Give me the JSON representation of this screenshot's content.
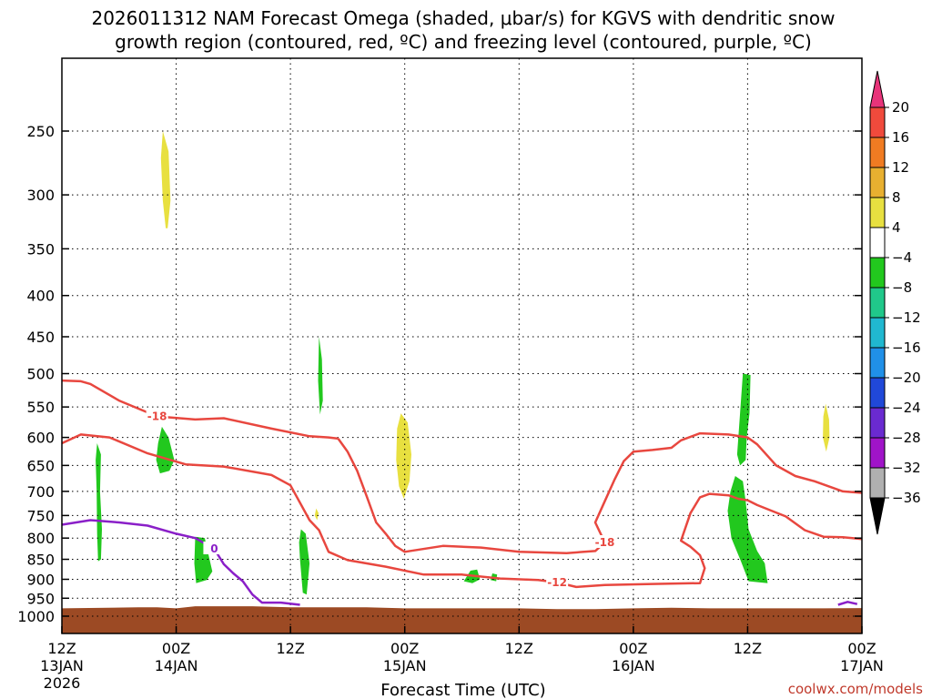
{
  "chart_data": {
    "type": "time-height cross section",
    "title_line1": "2026011312 NAM Forecast Omega (shaded, μbar/s) for KGVS with dendritic snow",
    "title_line2": "growth region (contoured, red, ºC) and freezing level (contoured, purple, ºC)",
    "xlabel": "Forecast Time (UTC)",
    "credit": "coolwx.com/models",
    "x_ticks": [
      {
        "hour": 0,
        "l1": "12Z",
        "l2": "13JAN",
        "l3": "2026"
      },
      {
        "hour": 12,
        "l1": "00Z",
        "l2": "14JAN",
        "l3": ""
      },
      {
        "hour": 24,
        "l1": "12Z",
        "l2": "",
        "l3": ""
      },
      {
        "hour": 36,
        "l1": "00Z",
        "l2": "15JAN",
        "l3": ""
      },
      {
        "hour": 48,
        "l1": "12Z",
        "l2": "",
        "l3": ""
      },
      {
        "hour": 60,
        "l1": "00Z",
        "l2": "16JAN",
        "l3": ""
      },
      {
        "hour": 72,
        "l1": "12Z",
        "l2": "",
        "l3": ""
      },
      {
        "hour": 84,
        "l1": "00Z",
        "l2": "17JAN",
        "l3": ""
      }
    ],
    "xlim_hours": [
      0,
      84
    ],
    "y_ticks_mb": [
      250,
      300,
      350,
      400,
      450,
      500,
      550,
      600,
      650,
      700,
      750,
      800,
      850,
      900,
      950,
      1000
    ],
    "ylim_mb": [
      200,
      1035
    ],
    "y_scale": "log",
    "grid": true,
    "colorbar": {
      "tick_labels": [
        "20",
        "16",
        "12",
        "8",
        "4",
        "−4",
        "−8",
        "−12",
        "−16",
        "−20",
        "−24",
        "−28",
        "−32",
        "−36"
      ],
      "colors": [
        "#e8347a",
        "#f04a3c",
        "#f07b22",
        "#e8b030",
        "#e8e040",
        "#ffffff",
        "#22c81e",
        "#20c88a",
        "#20b8d0",
        "#2090e8",
        "#2048d8",
        "#6a2ad0",
        "#a014c8",
        "#b0b0b0",
        "#000000"
      ]
    },
    "dgz_contours": [
      {
        "label": "-18",
        "points": [
          [
            0,
            510
          ],
          [
            2,
            511
          ],
          [
            3,
            515
          ],
          [
            6,
            540
          ],
          [
            10,
            565
          ],
          [
            14,
            570
          ],
          [
            17,
            568
          ],
          [
            22,
            585
          ],
          [
            26,
            598
          ],
          [
            28,
            600
          ],
          [
            29,
            602
          ]
        ]
      },
      {
        "label": "-12",
        "points": [
          [
            0,
            610
          ],
          [
            2,
            595
          ],
          [
            5,
            600
          ],
          [
            9,
            628
          ],
          [
            13,
            648
          ],
          [
            17,
            652
          ],
          [
            22,
            668
          ],
          [
            24,
            688
          ],
          [
            26,
            760
          ],
          [
            27,
            782
          ],
          [
            28,
            832
          ],
          [
            30,
            852
          ],
          [
            34,
            868
          ],
          [
            38,
            888
          ],
          [
            42,
            888
          ],
          [
            46,
            898
          ],
          [
            50,
            902
          ],
          [
            52,
            908
          ],
          [
            54,
            920
          ],
          [
            57,
            915
          ],
          [
            62,
            912
          ],
          [
            67,
            910
          ],
          [
            67.5,
            872
          ],
          [
            67,
            840
          ],
          [
            66,
            820
          ],
          [
            65,
            806
          ],
          [
            66,
            745
          ],
          [
            67,
            712
          ],
          [
            68,
            705
          ],
          [
            70,
            708
          ],
          [
            71,
            715
          ],
          [
            72,
            718
          ],
          [
            73,
            728
          ],
          [
            76,
            752
          ],
          [
            78,
            782
          ],
          [
            80,
            797
          ],
          [
            82,
            798
          ],
          [
            84,
            802
          ]
        ]
      },
      {
        "label": "-18",
        "points": [
          [
            29,
            602
          ],
          [
            30,
            625
          ],
          [
            31,
            660
          ],
          [
            32,
            710
          ],
          [
            33,
            765
          ],
          [
            34,
            790
          ],
          [
            35,
            818
          ],
          [
            36,
            832
          ],
          [
            40,
            818
          ],
          [
            44,
            822
          ],
          [
            48,
            832
          ],
          [
            53,
            835
          ],
          [
            56,
            830
          ],
          [
            57,
            810
          ],
          [
            56,
            765
          ],
          [
            57,
            720
          ],
          [
            58,
            678
          ],
          [
            59,
            642
          ],
          [
            60,
            625
          ],
          [
            62,
            622
          ],
          [
            64,
            618
          ],
          [
            65,
            605
          ],
          [
            67,
            593
          ],
          [
            70,
            595
          ],
          [
            72,
            600
          ],
          [
            73,
            612
          ],
          [
            75,
            650
          ],
          [
            77,
            670
          ],
          [
            79,
            680
          ],
          [
            82,
            700
          ],
          [
            84,
            703
          ]
        ]
      }
    ],
    "freezing_level": [
      {
        "label": "0",
        "points": [
          [
            0,
            770
          ],
          [
            3,
            760
          ],
          [
            6,
            765
          ],
          [
            9,
            772
          ],
          [
            12,
            790
          ],
          [
            14,
            800
          ],
          [
            16,
            825
          ],
          [
            17,
            862
          ],
          [
            18,
            885
          ],
          [
            19,
            905
          ],
          [
            20,
            940
          ],
          [
            21,
            962
          ],
          [
            23,
            962
          ],
          [
            25,
            968
          ]
        ]
      },
      {
        "label": "",
        "points": [
          [
            81.5,
            968
          ],
          [
            82.5,
            960
          ],
          [
            83.5,
            966
          ]
        ]
      }
    ],
    "omega_shading": [
      {
        "value_class": "4 to 8",
        "color": "#e8e040",
        "points": [
          [
            10.6,
            250
          ],
          [
            11.2,
            265
          ],
          [
            11.4,
            305
          ],
          [
            11.1,
            330
          ],
          [
            10.9,
            330
          ],
          [
            10.6,
            305
          ],
          [
            10.4,
            270
          ]
        ]
      },
      {
        "value_class": "4 to 8",
        "color": "#e8e040",
        "points": [
          [
            35.6,
            560
          ],
          [
            36.3,
            575
          ],
          [
            36.7,
            630
          ],
          [
            36.5,
            680
          ],
          [
            35.9,
            715
          ],
          [
            35.4,
            690
          ],
          [
            35.1,
            640
          ],
          [
            35.2,
            585
          ]
        ]
      },
      {
        "value_class": "4 to 8",
        "color": "#e8e040",
        "points": [
          [
            26.7,
            735
          ],
          [
            26.95,
            745
          ],
          [
            26.8,
            760
          ],
          [
            26.55,
            750
          ]
        ]
      },
      {
        "value_class": "4 to 8",
        "color": "#e8e040",
        "points": [
          [
            80.2,
            545
          ],
          [
            80.55,
            570
          ],
          [
            80.6,
            600
          ],
          [
            80.25,
            625
          ],
          [
            79.9,
            600
          ],
          [
            79.95,
            565
          ]
        ]
      },
      {
        "value_class": "-4 to -8",
        "color": "#22c81e",
        "points": [
          [
            3.7,
            610
          ],
          [
            4.1,
            630
          ],
          [
            4.0,
            700
          ],
          [
            4.2,
            780
          ],
          [
            4.1,
            850
          ],
          [
            3.8,
            855
          ],
          [
            3.7,
            790
          ],
          [
            3.65,
            700
          ],
          [
            3.55,
            640
          ]
        ]
      },
      {
        "value_class": "-4 to -8",
        "color": "#22c81e",
        "points": [
          [
            10.5,
            582
          ],
          [
            11.2,
            600
          ],
          [
            11.8,
            640
          ],
          [
            11.3,
            660
          ],
          [
            10.3,
            665
          ],
          [
            9.9,
            640
          ],
          [
            10.1,
            610
          ]
        ]
      },
      {
        "value_class": "-4 to -8",
        "color": "#22c81e",
        "points": [
          [
            14.0,
            797
          ],
          [
            15.0,
            800
          ],
          [
            15.4,
            840
          ],
          [
            15.8,
            880
          ],
          [
            15.2,
            902
          ],
          [
            14.1,
            910
          ],
          [
            13.9,
            860
          ]
        ]
      },
      {
        "value_class": "-4 to -8",
        "color": "#22c81e",
        "points": [
          [
            27.0,
            450
          ],
          [
            27.3,
            480
          ],
          [
            27.4,
            540
          ],
          [
            27.1,
            562
          ],
          [
            26.9,
            510
          ]
        ]
      },
      {
        "value_class": "-4 to -8",
        "color": "#22c81e",
        "points": [
          [
            25.1,
            780
          ],
          [
            25.6,
            790
          ],
          [
            26.0,
            860
          ],
          [
            25.7,
            940
          ],
          [
            25.3,
            935
          ],
          [
            25.0,
            850
          ],
          [
            24.9,
            810
          ]
        ]
      },
      {
        "value_class": "-4 to -8",
        "color": "#22c81e",
        "points": [
          [
            42.9,
            878
          ],
          [
            43.6,
            875
          ],
          [
            43.9,
            900
          ],
          [
            43.1,
            910
          ],
          [
            42.2,
            905
          ]
        ]
      },
      {
        "value_class": "-4 to -8",
        "color": "#22c81e",
        "points": [
          [
            45.2,
            885
          ],
          [
            45.7,
            888
          ],
          [
            45.6,
            905
          ],
          [
            45.0,
            902
          ]
        ]
      },
      {
        "value_class": "-4 to -8",
        "color": "#22c81e",
        "points": [
          [
            71.5,
            500
          ],
          [
            72.3,
            502
          ],
          [
            72.2,
            560
          ],
          [
            71.9,
            600
          ],
          [
            71.8,
            640
          ],
          [
            71.2,
            650
          ],
          [
            70.9,
            630
          ],
          [
            71.2,
            560
          ]
        ]
      },
      {
        "value_class": "-4 to -8",
        "color": "#22c81e",
        "points": [
          [
            70.7,
            670
          ],
          [
            71.5,
            680
          ],
          [
            71.8,
            720
          ],
          [
            72.1,
            780
          ],
          [
            73.0,
            830
          ],
          [
            73.8,
            860
          ],
          [
            74.1,
            910
          ],
          [
            72.1,
            905
          ],
          [
            71.3,
            855
          ],
          [
            70.3,
            800
          ],
          [
            69.9,
            740
          ],
          [
            70.2,
            700
          ]
        ]
      }
    ],
    "surface_fill_color": "#9c4a24",
    "surface_pressure_mb": [
      [
        0,
        978
      ],
      [
        8,
        975
      ],
      [
        10,
        975
      ],
      [
        12,
        978
      ],
      [
        14,
        972
      ],
      [
        18,
        972
      ],
      [
        20,
        972
      ],
      [
        24,
        975
      ],
      [
        28,
        975
      ],
      [
        32,
        975
      ],
      [
        36,
        978
      ],
      [
        40,
        978
      ],
      [
        44,
        978
      ],
      [
        48,
        978
      ],
      [
        52,
        980
      ],
      [
        56,
        980
      ],
      [
        60,
        978
      ],
      [
        64,
        976
      ],
      [
        68,
        978
      ],
      [
        72,
        978
      ],
      [
        76,
        978
      ],
      [
        80,
        978
      ],
      [
        84,
        977
      ]
    ]
  },
  "ui": {
    "triangle_colors": {
      "top": "#d0107c",
      "bottom": "#000000"
    }
  }
}
